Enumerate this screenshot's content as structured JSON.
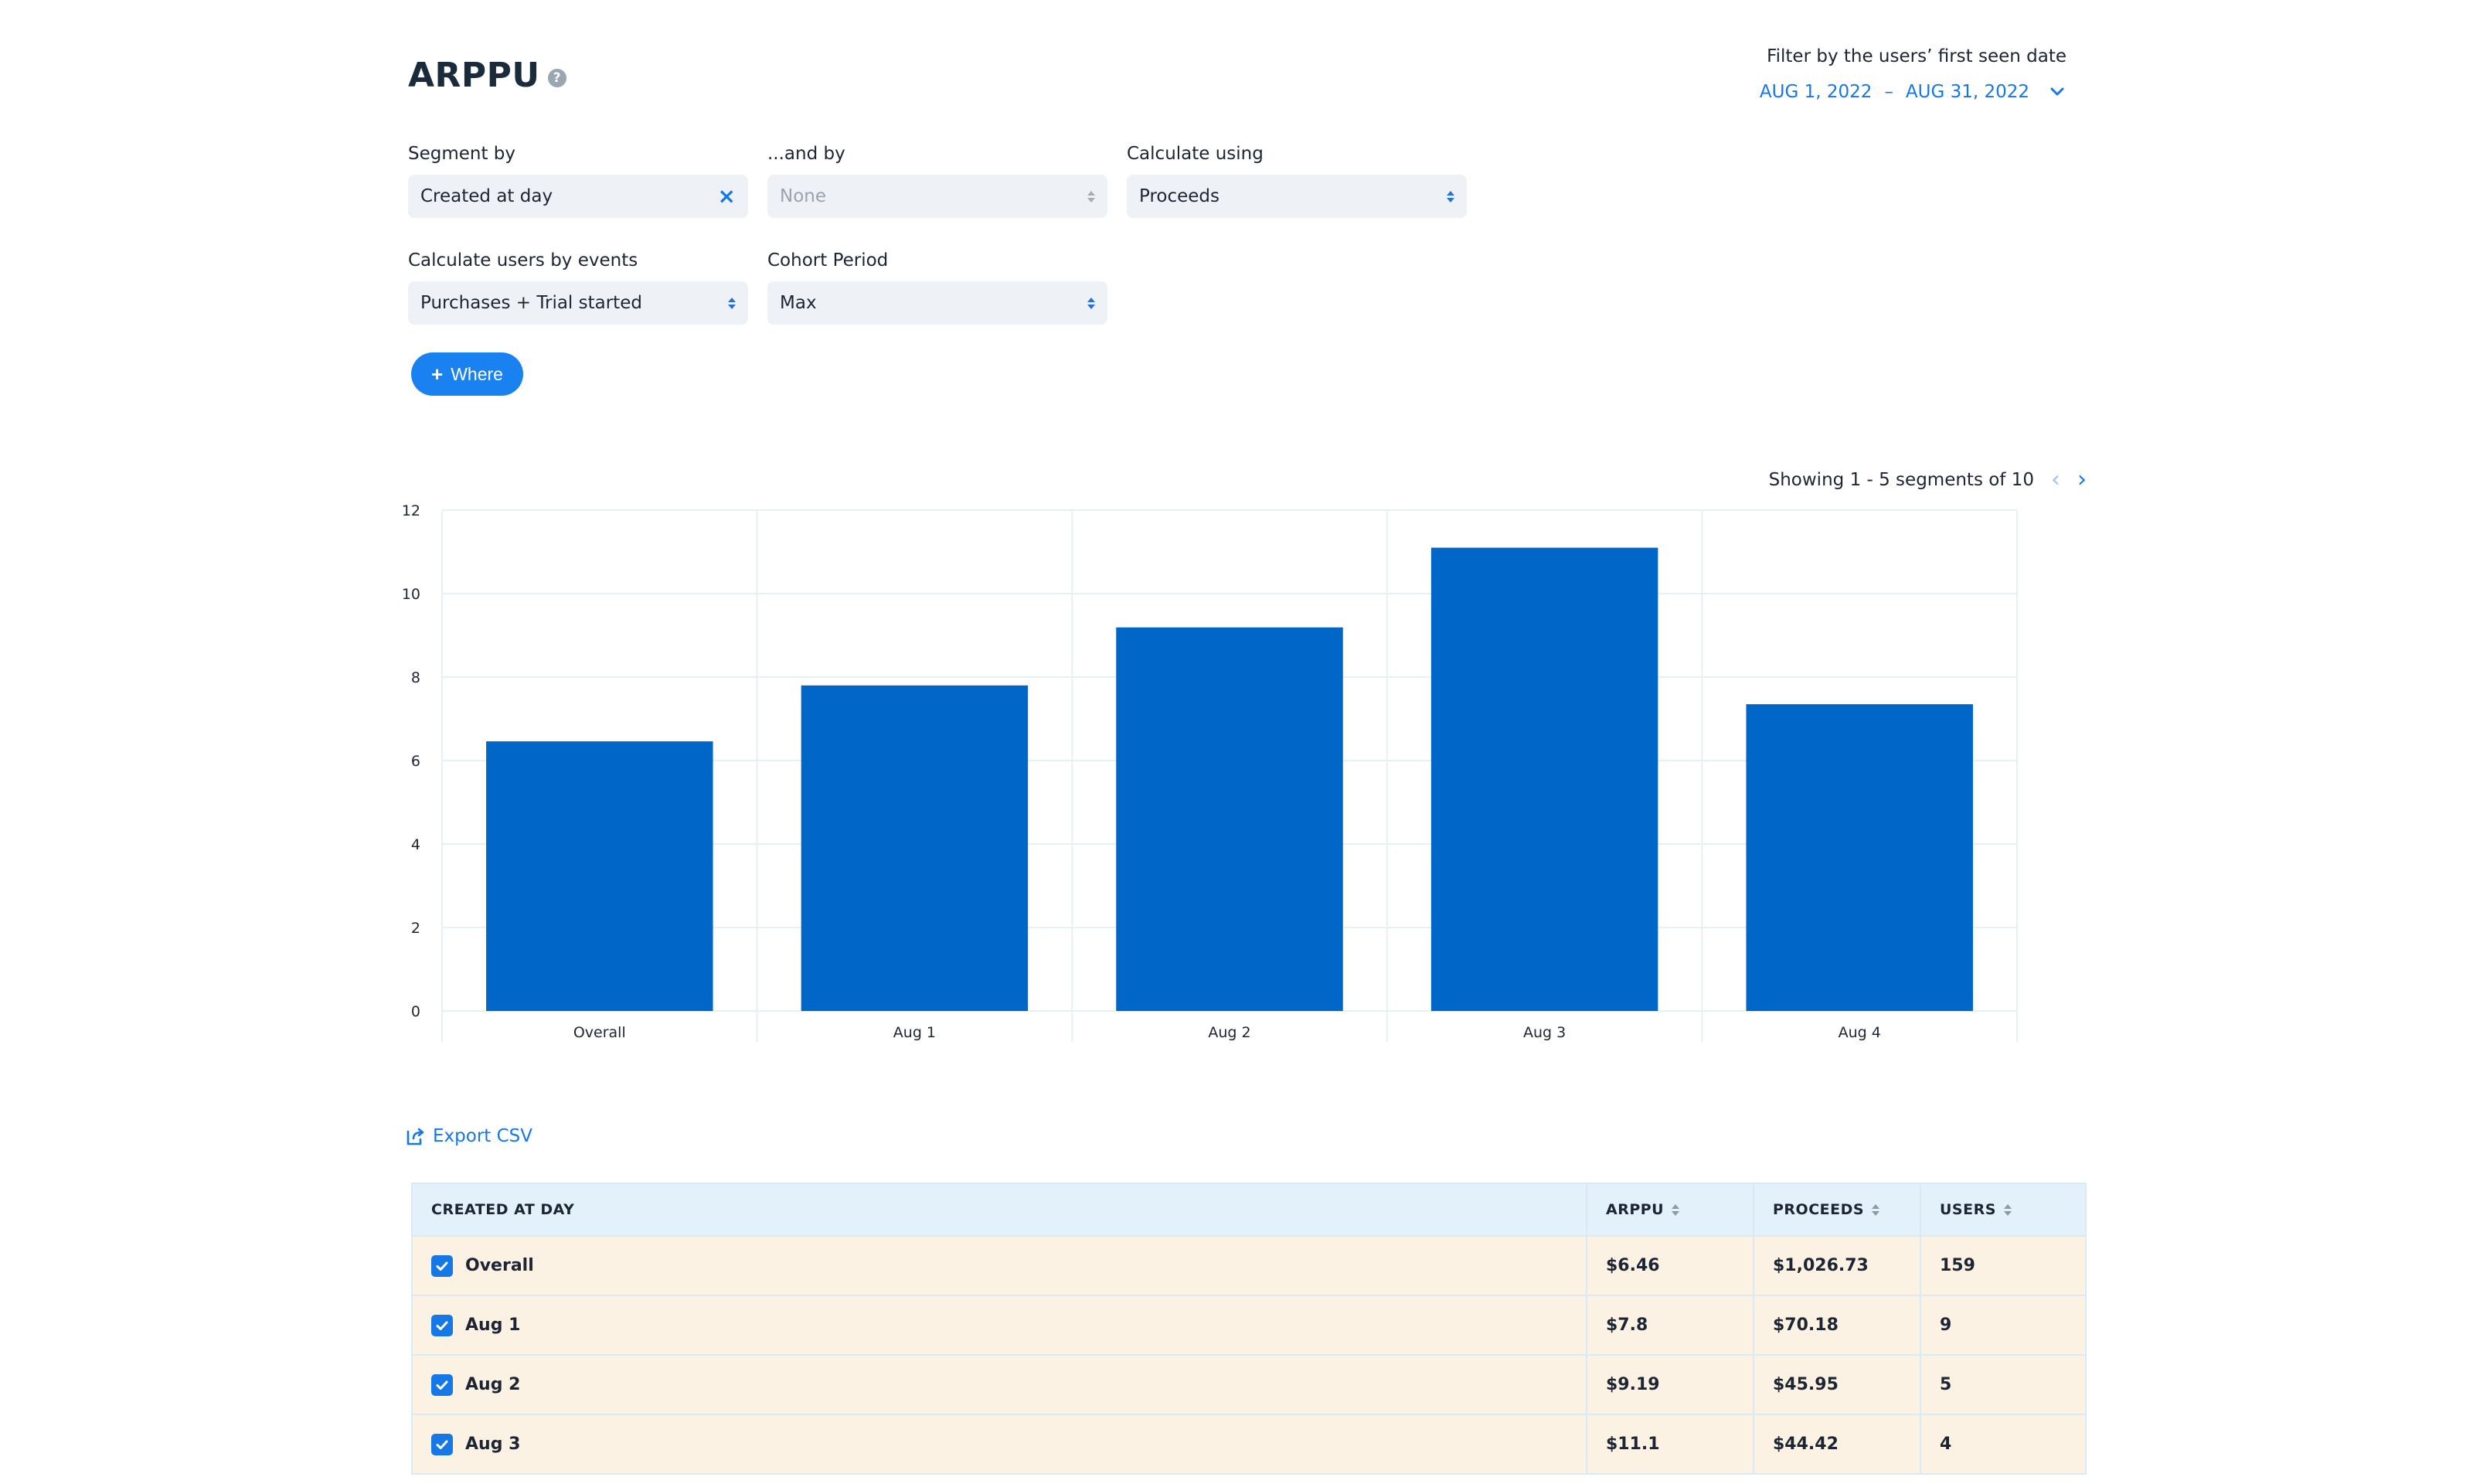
{
  "header": {
    "title": "ARPPU",
    "help_glyph": "?",
    "filter_label": "Filter by the users’ first seen date",
    "date_start": "AUG 1, 2022",
    "date_sep": "–",
    "date_end": "AUG 31, 2022"
  },
  "form": {
    "segment_by": {
      "label": "Segment by",
      "value": "Created at day",
      "clear": "×"
    },
    "and_by": {
      "label": "...and by",
      "value": "None"
    },
    "calculate_using": {
      "label": "Calculate using",
      "value": "Proceeds"
    },
    "users_by_events": {
      "label": "Calculate users by events",
      "value": "Purchases + Trial started"
    },
    "cohort_period": {
      "label": "Cohort Period",
      "value": "Max"
    },
    "where_button": "Where",
    "where_plus": "+"
  },
  "pager": {
    "text": "Showing 1 - 5 segments of 10",
    "prev": "‹",
    "next": "›"
  },
  "chart_data": {
    "type": "bar",
    "categories": [
      "Overall",
      "Aug 1",
      "Aug 2",
      "Aug 3",
      "Aug 4"
    ],
    "values": [
      6.46,
      7.8,
      9.19,
      11.1,
      7.35
    ],
    "ylim": [
      0,
      12
    ],
    "yticks": [
      0,
      2,
      4,
      6,
      8,
      10,
      12
    ],
    "grid": true,
    "bar_color": "#0066c8"
  },
  "export_label": "Export CSV",
  "table": {
    "columns": [
      "CREATED AT DAY",
      "ARPPU",
      "PROCEEDS",
      "USERS"
    ],
    "rows": [
      {
        "segment": "Overall",
        "arppu": "$6.46",
        "proceeds": "$1,026.73",
        "users": "159"
      },
      {
        "segment": "Aug 1",
        "arppu": "$7.8",
        "proceeds": "$70.18",
        "users": "9"
      },
      {
        "segment": "Aug 2",
        "arppu": "$9.19",
        "proceeds": "$45.95",
        "users": "5"
      },
      {
        "segment": "Aug 3",
        "arppu": "$11.1",
        "proceeds": "$44.42",
        "users": "4"
      }
    ]
  },
  "colors": {
    "accent": "#1677e6",
    "row_bg": "#fcf2e3",
    "header_bg": "#e3f1fb"
  }
}
